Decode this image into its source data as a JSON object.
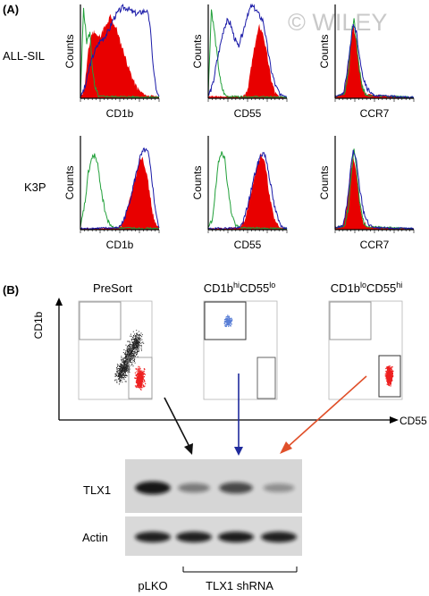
{
  "panel_a": {
    "label": "(A)",
    "rows": [
      {
        "label": "ALL-SIL",
        "plots": [
          {
            "x_label": "CD1b",
            "y_label": "Counts",
            "green": [
              [
                0,
                0.02
              ],
              [
                4,
                0.97
              ],
              [
                8,
                0.6
              ],
              [
                12,
                0.7
              ],
              [
                15,
                0.35
              ],
              [
                18,
                0.12
              ],
              [
                23,
                0.02
              ],
              [
                100,
                0.01
              ]
            ],
            "red": [
              [
                0,
                0.02
              ],
              [
                5,
                0.1
              ],
              [
                10,
                0.5
              ],
              [
                14,
                0.68
              ],
              [
                18,
                0.72
              ],
              [
                22,
                0.65
              ],
              [
                26,
                0.68
              ],
              [
                30,
                0.75
              ],
              [
                34,
                0.78
              ],
              [
                38,
                0.88
              ],
              [
                42,
                0.8
              ],
              [
                46,
                0.74
              ],
              [
                50,
                0.62
              ],
              [
                55,
                0.5
              ],
              [
                60,
                0.36
              ],
              [
                65,
                0.24
              ],
              [
                70,
                0.14
              ],
              [
                76,
                0.07
              ],
              [
                84,
                0.03
              ],
              [
                100,
                0.02
              ]
            ],
            "blue": [
              [
                0,
                0.02
              ],
              [
                6,
                0.12
              ],
              [
                12,
                0.35
              ],
              [
                18,
                0.5
              ],
              [
                24,
                0.6
              ],
              [
                30,
                0.65
              ],
              [
                36,
                0.72
              ],
              [
                42,
                0.85
              ],
              [
                48,
                0.92
              ],
              [
                54,
                0.97
              ],
              [
                60,
                0.96
              ],
              [
                66,
                0.92
              ],
              [
                72,
                0.9
              ],
              [
                78,
                0.92
              ],
              [
                84,
                0.94
              ],
              [
                88,
                0.82
              ],
              [
                93,
                0.3
              ],
              [
                97,
                0.06
              ],
              [
                100,
                0.02
              ]
            ]
          },
          {
            "x_label": "CD55",
            "y_label": "Counts",
            "green": [
              [
                0,
                0.05
              ],
              [
                4,
                0.95
              ],
              [
                8,
                0.7
              ],
              [
                12,
                0.4
              ],
              [
                16,
                0.15
              ],
              [
                20,
                0.05
              ],
              [
                24,
                0.02
              ],
              [
                100,
                0.01
              ]
            ],
            "red": [
              [
                0,
                0.02
              ],
              [
                44,
                0.02
              ],
              [
                50,
                0.1
              ],
              [
                55,
                0.35
              ],
              [
                60,
                0.6
              ],
              [
                65,
                0.77
              ],
              [
                70,
                0.68
              ],
              [
                75,
                0.45
              ],
              [
                80,
                0.2
              ],
              [
                85,
                0.06
              ],
              [
                90,
                0.02
              ],
              [
                100,
                0.01
              ]
            ],
            "blue": [
              [
                0,
                0.02
              ],
              [
                6,
                0.15
              ],
              [
                10,
                0.35
              ],
              [
                15,
                0.55
              ],
              [
                20,
                0.75
              ],
              [
                24,
                0.82
              ],
              [
                28,
                0.8
              ],
              [
                33,
                0.65
              ],
              [
                38,
                0.55
              ],
              [
                44,
                0.7
              ],
              [
                50,
                0.9
              ],
              [
                55,
                0.98
              ],
              [
                60,
                0.95
              ],
              [
                65,
                0.88
              ],
              [
                70,
                0.82
              ],
              [
                75,
                0.55
              ],
              [
                80,
                0.3
              ],
              [
                86,
                0.12
              ],
              [
                92,
                0.04
              ],
              [
                100,
                0.02
              ]
            ]
          },
          {
            "x_label": "CCR7",
            "y_label": "Counts",
            "green": [
              [
                0,
                0.02
              ],
              [
                12,
                0.05
              ],
              [
                17,
                0.3
              ],
              [
                21,
                0.7
              ],
              [
                24,
                0.85
              ],
              [
                27,
                0.6
              ],
              [
                31,
                0.3
              ],
              [
                35,
                0.1
              ],
              [
                40,
                0.03
              ],
              [
                100,
                0.01
              ]
            ],
            "red": [
              [
                0,
                0.02
              ],
              [
                10,
                0.05
              ],
              [
                15,
                0.25
              ],
              [
                19,
                0.55
              ],
              [
                23,
                0.78
              ],
              [
                27,
                0.62
              ],
              [
                31,
                0.32
              ],
              [
                35,
                0.12
              ],
              [
                40,
                0.04
              ],
              [
                100,
                0.01
              ]
            ],
            "blue": [
              [
                0,
                0.02
              ],
              [
                10,
                0.05
              ],
              [
                15,
                0.25
              ],
              [
                19,
                0.55
              ],
              [
                23,
                0.8
              ],
              [
                27,
                0.7
              ],
              [
                31,
                0.45
              ],
              [
                36,
                0.2
              ],
              [
                42,
                0.08
              ],
              [
                50,
                0.03
              ],
              [
                100,
                0.01
              ]
            ]
          }
        ]
      },
      {
        "label": "K3P",
        "plots": [
          {
            "x_label": "CD1b",
            "y_label": "Counts",
            "green": [
              [
                0,
                0.02
              ],
              [
                6,
                0.3
              ],
              [
                10,
                0.6
              ],
              [
                14,
                0.75
              ],
              [
                18,
                0.8
              ],
              [
                22,
                0.68
              ],
              [
                26,
                0.45
              ],
              [
                30,
                0.25
              ],
              [
                35,
                0.08
              ],
              [
                42,
                0.02
              ],
              [
                100,
                0.01
              ]
            ],
            "red": [
              [
                0,
                0.01
              ],
              [
                48,
                0.02
              ],
              [
                54,
                0.08
              ],
              [
                60,
                0.22
              ],
              [
                66,
                0.42
              ],
              [
                71,
                0.6
              ],
              [
                75,
                0.75
              ],
              [
                79,
                0.78
              ],
              [
                83,
                0.65
              ],
              [
                87,
                0.45
              ],
              [
                91,
                0.22
              ],
              [
                95,
                0.06
              ],
              [
                100,
                0.02
              ]
            ],
            "blue": [
              [
                0,
                0.01
              ],
              [
                48,
                0.02
              ],
              [
                54,
                0.08
              ],
              [
                60,
                0.22
              ],
              [
                66,
                0.42
              ],
              [
                71,
                0.6
              ],
              [
                76,
                0.77
              ],
              [
                81,
                0.85
              ],
              [
                86,
                0.82
              ],
              [
                90,
                0.6
              ],
              [
                94,
                0.3
              ],
              [
                98,
                0.08
              ],
              [
                100,
                0.02
              ]
            ]
          },
          {
            "x_label": "CD55",
            "y_label": "Counts",
            "green": [
              [
                0,
                0.02
              ],
              [
                5,
                0.1
              ],
              [
                9,
                0.4
              ],
              [
                13,
                0.7
              ],
              [
                17,
                0.85
              ],
              [
                21,
                0.75
              ],
              [
                25,
                0.45
              ],
              [
                29,
                0.2
              ],
              [
                34,
                0.06
              ],
              [
                40,
                0.02
              ],
              [
                100,
                0.01
              ]
            ],
            "red": [
              [
                0,
                0.01
              ],
              [
                40,
                0.02
              ],
              [
                46,
                0.1
              ],
              [
                52,
                0.3
              ],
              [
                58,
                0.55
              ],
              [
                63,
                0.72
              ],
              [
                67,
                0.8
              ],
              [
                71,
                0.75
              ],
              [
                75,
                0.55
              ],
              [
                79,
                0.3
              ],
              [
                84,
                0.12
              ],
              [
                90,
                0.03
              ],
              [
                100,
                0.01
              ]
            ],
            "blue": [
              [
                0,
                0.01
              ],
              [
                40,
                0.02
              ],
              [
                46,
                0.12
              ],
              [
                52,
                0.32
              ],
              [
                58,
                0.55
              ],
              [
                63,
                0.7
              ],
              [
                67,
                0.8
              ],
              [
                71,
                0.82
              ],
              [
                75,
                0.7
              ],
              [
                79,
                0.5
              ],
              [
                84,
                0.25
              ],
              [
                90,
                0.08
              ],
              [
                96,
                0.02
              ],
              [
                100,
                0.01
              ]
            ]
          },
          {
            "x_label": "CCR7",
            "y_label": "Counts",
            "green": [
              [
                0,
                0.02
              ],
              [
                12,
                0.04
              ],
              [
                17,
                0.25
              ],
              [
                21,
                0.65
              ],
              [
                24,
                0.88
              ],
              [
                27,
                0.65
              ],
              [
                31,
                0.3
              ],
              [
                35,
                0.1
              ],
              [
                40,
                0.03
              ],
              [
                100,
                0.01
              ]
            ],
            "red": [
              [
                0,
                0.02
              ],
              [
                10,
                0.04
              ],
              [
                15,
                0.25
              ],
              [
                19,
                0.6
              ],
              [
                23,
                0.8
              ],
              [
                27,
                0.6
              ],
              [
                31,
                0.3
              ],
              [
                35,
                0.1
              ],
              [
                40,
                0.03
              ],
              [
                100,
                0.01
              ]
            ],
            "blue": [
              [
                0,
                0.02
              ],
              [
                10,
                0.04
              ],
              [
                15,
                0.25
              ],
              [
                19,
                0.6
              ],
              [
                23,
                0.85
              ],
              [
                27,
                0.72
              ],
              [
                31,
                0.45
              ],
              [
                36,
                0.2
              ],
              [
                42,
                0.06
              ],
              [
                50,
                0.02
              ],
              [
                100,
                0.01
              ]
            ]
          }
        ]
      }
    ]
  },
  "panel_b": {
    "label": "(B)",
    "y_axis_label": "CD1b",
    "x_axis_label": "CD55",
    "sort_titles": [
      {
        "base": "PreSort",
        "parts": []
      },
      {
        "base": "CD1b",
        "parts": [
          {
            "sup": "hi",
            "text": "CD55"
          },
          {
            "sup": "lo",
            "text": ""
          }
        ]
      },
      {
        "base": "CD1b",
        "parts": [
          {
            "sup": "lo",
            "text": "CD55"
          },
          {
            "sup": "hi",
            "text": ""
          }
        ]
      }
    ],
    "blot": {
      "bands": [
        "TLX1",
        "Actin"
      ],
      "lanes": [
        "pLKO",
        "TLX1 shRNA"
      ],
      "tlx1_intensity": [
        0.95,
        0.45,
        0.7,
        0.35
      ],
      "actin_intensity": [
        0.9,
        0.9,
        0.92,
        0.9
      ]
    }
  },
  "watermark": "© WILEY",
  "colors": {
    "green": "#22a03a",
    "red": "#e80000",
    "blue": "#1a1aa8",
    "black_dots": "#222222",
    "blue_dots": "#5a7fd6",
    "red_dots": "#ee2020",
    "black_arrow": "#111111",
    "blue_arrow": "#1f2a9c",
    "red_arrow": "#e0502a"
  }
}
